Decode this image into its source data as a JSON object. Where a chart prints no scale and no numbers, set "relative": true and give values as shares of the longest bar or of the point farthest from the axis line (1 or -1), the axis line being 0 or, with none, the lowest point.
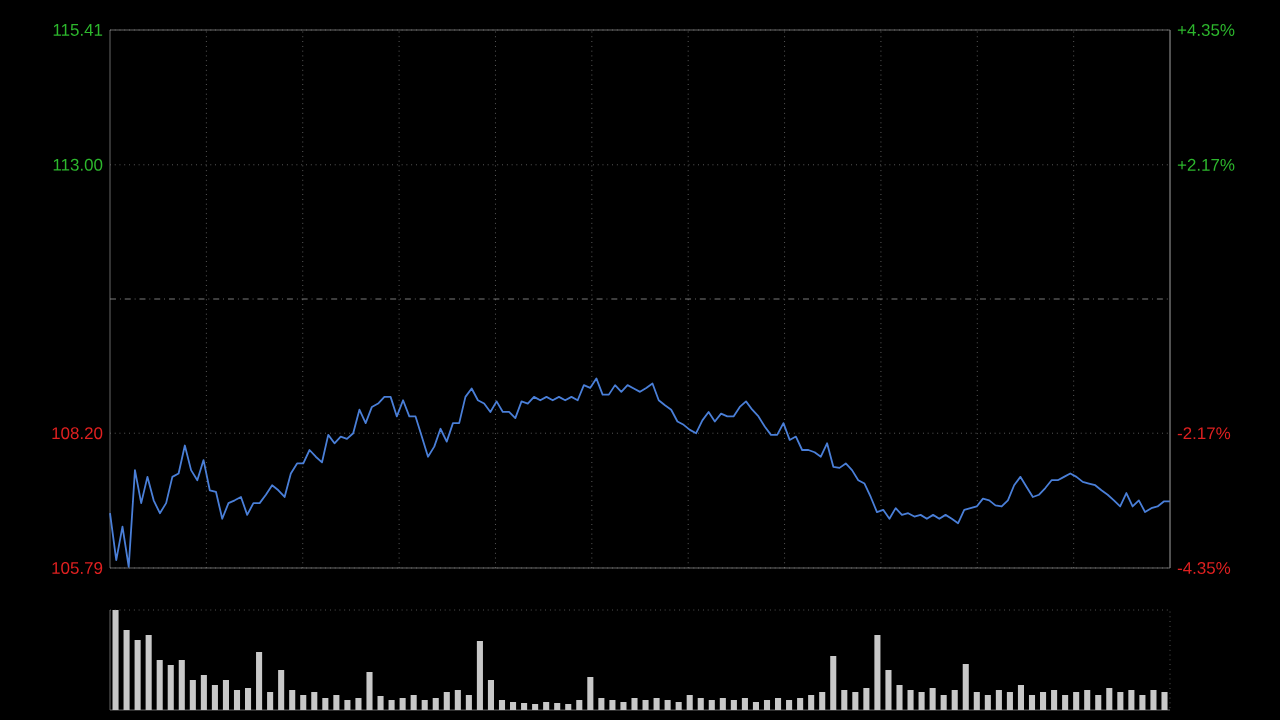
{
  "chart_data": [
    {
      "type": "line",
      "color": "#4a7fd8",
      "categories": [
        null,
        null,
        null,
        null,
        null,
        null,
        null,
        null,
        null,
        null,
        null,
        null,
        null,
        null,
        null,
        null,
        null,
        null,
        null,
        null,
        null,
        null,
        null,
        null,
        null,
        null,
        null,
        null,
        null,
        null,
        null,
        null,
        null,
        null,
        null,
        null,
        null,
        null,
        null,
        null,
        null,
        null,
        null,
        null,
        null,
        null,
        null,
        null,
        null,
        null,
        null,
        null,
        null,
        null,
        null,
        null,
        null,
        null,
        null,
        null,
        null,
        null,
        null,
        null,
        null,
        null,
        null,
        null,
        null,
        null,
        null,
        null,
        null,
        null,
        null,
        null,
        null,
        null,
        null,
        null,
        null,
        null,
        null,
        null,
        null,
        null,
        null,
        null,
        null,
        null,
        null,
        null,
        null,
        null,
        null,
        null,
        null,
        null,
        null,
        null,
        null,
        null,
        null,
        null,
        null,
        null,
        null,
        null,
        null,
        null,
        null,
        null,
        null,
        null,
        null,
        null,
        null,
        null,
        null,
        null,
        null,
        null,
        null,
        null,
        null,
        null,
        null,
        null,
        null,
        null,
        null,
        null,
        null,
        null,
        null,
        null,
        null,
        null,
        null,
        null,
        null,
        null,
        null,
        null,
        null,
        null,
        null,
        null,
        null,
        null,
        null,
        null,
        null,
        null,
        null,
        null,
        null,
        null,
        null,
        null,
        null,
        null,
        null,
        null,
        null,
        null,
        null,
        null,
        null,
        null,
        null
      ],
      "values": [
        106.77,
        105.93,
        106.53,
        105.81,
        107.54,
        106.95,
        107.42,
        107.0,
        106.77,
        106.95,
        107.42,
        107.48,
        107.98,
        107.54,
        107.36,
        107.72,
        107.18,
        107.15,
        106.67,
        106.95,
        107.0,
        107.06,
        106.74,
        106.95,
        106.95,
        107.1,
        107.27,
        107.18,
        107.06,
        107.48,
        107.66,
        107.66,
        107.9,
        107.78,
        107.68,
        108.17,
        108.02,
        108.14,
        108.1,
        108.2,
        108.62,
        108.38,
        108.67,
        108.73,
        108.85,
        108.85,
        108.5,
        108.79,
        108.5,
        108.5,
        108.14,
        107.78,
        107.96,
        108.28,
        108.05,
        108.38,
        108.38,
        108.85,
        109.0,
        108.79,
        108.73,
        108.58,
        108.77,
        108.58,
        108.58,
        108.47,
        108.77,
        108.73,
        108.85,
        108.79,
        108.85,
        108.79,
        108.85,
        108.79,
        108.85,
        108.79,
        109.06,
        109.01,
        109.18,
        108.89,
        108.89,
        109.06,
        108.94,
        109.06,
        109.0,
        108.94,
        109.01,
        109.09,
        108.79,
        108.7,
        108.62,
        108.41,
        108.35,
        108.26,
        108.2,
        108.43,
        108.58,
        108.41,
        108.55,
        108.5,
        108.5,
        108.67,
        108.77,
        108.62,
        108.5,
        108.32,
        108.17,
        108.17,
        108.38,
        108.08,
        108.14,
        107.9,
        107.9,
        107.86,
        107.78,
        108.02,
        107.6,
        107.58,
        107.66,
        107.54,
        107.36,
        107.3,
        107.06,
        106.79,
        106.83,
        106.67,
        106.86,
        106.74,
        106.77,
        106.71,
        106.74,
        106.67,
        106.74,
        106.67,
        106.74,
        106.67,
        106.59,
        106.83,
        106.86,
        106.89,
        107.03,
        107.0,
        106.91,
        106.89,
        107.0,
        107.27,
        107.42,
        107.24,
        107.06,
        107.1,
        107.22,
        107.36,
        107.36,
        107.42,
        107.48,
        107.42,
        107.33,
        107.3,
        107.27,
        107.18,
        107.1,
        107.0,
        106.89,
        107.13,
        106.89,
        107.0,
        106.79,
        106.86,
        106.89,
        106.98,
        106.98
      ],
      "ylim": [
        105.79,
        115.41
      ],
      "yticks": [
        {
          "value": 105.79,
          "label": "105.79"
        },
        {
          "value": 108.2,
          "label": "108.20"
        },
        {
          "value": 113.0,
          "label": "113.00"
        },
        {
          "value": 115.41,
          "label": "115.41"
        }
      ],
      "y2lim": [
        -4.35,
        4.35
      ],
      "y2ticks": [
        {
          "value": -4.35,
          "label": "-4.35%"
        },
        {
          "value": -2.17,
          "label": "-2.17%"
        },
        {
          "value": 2.17,
          "label": "+2.17%"
        },
        {
          "value": 4.35,
          "label": "+4.35%"
        }
      ],
      "ref_lines": [
        {
          "axis": "y",
          "value": 110.6,
          "color": "#9a9a9a",
          "line_style": "dashed"
        }
      ],
      "grid": true,
      "tick_labels": "y"
    },
    {
      "type": "bar",
      "relative": true,
      "color": "#c8c8c8",
      "categories": [
        null,
        null,
        null,
        null,
        null,
        null,
        null,
        null,
        null,
        null,
        null,
        null,
        null,
        null,
        null,
        null,
        null,
        null,
        null,
        null,
        null,
        null,
        null,
        null,
        null,
        null,
        null,
        null,
        null,
        null,
        null,
        null,
        null,
        null,
        null,
        null,
        null,
        null,
        null,
        null,
        null,
        null,
        null,
        null,
        null,
        null,
        null,
        null,
        null,
        null,
        null,
        null,
        null,
        null,
        null,
        null,
        null,
        null,
        null,
        null,
        null,
        null,
        null,
        null,
        null,
        null,
        null,
        null,
        null,
        null,
        null,
        null,
        null,
        null,
        null,
        null,
        null,
        null,
        null,
        null,
        null,
        null,
        null,
        null,
        null,
        null,
        null,
        null,
        null,
        null,
        null,
        null,
        null,
        null,
        null,
        null
      ],
      "values": [
        1.0,
        0.8,
        0.7,
        0.75,
        0.5,
        0.45,
        0.5,
        0.3,
        0.35,
        0.25,
        0.3,
        0.2,
        0.22,
        0.58,
        0.18,
        0.4,
        0.2,
        0.15,
        0.18,
        0.12,
        0.15,
        0.1,
        0.12,
        0.38,
        0.14,
        0.1,
        0.12,
        0.15,
        0.1,
        0.12,
        0.18,
        0.2,
        0.15,
        0.69,
        0.3,
        0.1,
        0.08,
        0.07,
        0.06,
        0.08,
        0.07,
        0.06,
        0.1,
        0.33,
        0.12,
        0.1,
        0.08,
        0.12,
        0.1,
        0.12,
        0.1,
        0.08,
        0.15,
        0.12,
        0.1,
        0.12,
        0.1,
        0.12,
        0.08,
        0.1,
        0.12,
        0.1,
        0.12,
        0.15,
        0.18,
        0.54,
        0.2,
        0.18,
        0.22,
        0.75,
        0.4,
        0.25,
        0.2,
        0.18,
        0.22,
        0.15,
        0.2,
        0.46,
        0.18,
        0.15,
        0.2,
        0.18,
        0.25,
        0.15,
        0.18,
        0.2,
        0.15,
        0.18,
        0.2,
        0.15,
        0.22,
        0.18,
        0.2,
        0.15,
        0.2,
        0.18
      ],
      "tick_labels": false
    }
  ]
}
